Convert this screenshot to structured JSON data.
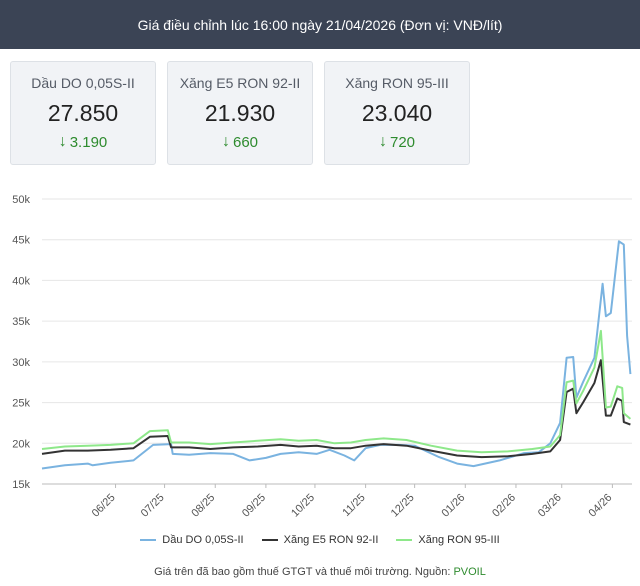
{
  "header": {
    "title": "Giá điều chỉnh lúc 16:00 ngày 21/04/2026 (Đơn vị: VNĐ/lít)"
  },
  "cards": [
    {
      "label": "Dầu DO 0,05S-II",
      "price": "27.850",
      "change": "3.190",
      "direction": "down"
    },
    {
      "label": "Xăng E5 RON 92-II",
      "price": "21.930",
      "change": "660",
      "direction": "down"
    },
    {
      "label": "Xăng RON 95-III",
      "price": "23.040",
      "change": "720",
      "direction": "down"
    }
  ],
  "icons": {
    "change_arrow": "arrow-down-icon"
  },
  "colors": {
    "header_bg": "#3b4455",
    "change": "#2e8b2e",
    "do": "#7ab3e0",
    "e5": "#333333",
    "ron95": "#8ee88a"
  },
  "chart_data": {
    "type": "line",
    "title": "",
    "xlabel": "",
    "ylabel": "",
    "ylim": [
      15000,
      50000
    ],
    "yticks": [
      15000,
      20000,
      25000,
      30000,
      35000,
      40000,
      45000,
      50000
    ],
    "ytick_labels": [
      "15k",
      "20k",
      "25k",
      "30k",
      "35k",
      "40k",
      "45k",
      "50k"
    ],
    "x_domain": [
      "2025-05-01",
      "2026-04-27"
    ],
    "xticks": [
      "2025-06-15",
      "2025-07-15",
      "2025-08-15",
      "2025-09-15",
      "2025-10-15",
      "2025-11-15",
      "2025-12-15",
      "2026-01-15",
      "2026-02-15",
      "2026-03-15",
      "2026-04-15"
    ],
    "xtick_labels": [
      "06/25",
      "07/25",
      "08/25",
      "09/25",
      "10/25",
      "11/25",
      "12/25",
      "01/26",
      "02/26",
      "03/26",
      "04/26"
    ],
    "grid": "horizontal",
    "legend_position": "bottom",
    "series": [
      {
        "name": "Dầu DO 0,05S-II",
        "points": [
          [
            "2025-05-01",
            16900
          ],
          [
            "2025-05-15",
            17300
          ],
          [
            "2025-05-29",
            17500
          ],
          [
            "2025-06-01",
            17300
          ],
          [
            "2025-06-12",
            17600
          ],
          [
            "2025-06-26",
            17900
          ],
          [
            "2025-07-08",
            19800
          ],
          [
            "2025-07-19",
            19900
          ],
          [
            "2025-07-20",
            18700
          ],
          [
            "2025-07-30",
            18600
          ],
          [
            "2025-08-12",
            18800
          ],
          [
            "2025-08-26",
            18700
          ],
          [
            "2025-09-05",
            17900
          ],
          [
            "2025-09-15",
            18200
          ],
          [
            "2025-09-24",
            18700
          ],
          [
            "2025-10-05",
            18900
          ],
          [
            "2025-10-16",
            18700
          ],
          [
            "2025-10-24",
            19200
          ],
          [
            "2025-11-02",
            18500
          ],
          [
            "2025-11-08",
            17900
          ],
          [
            "2025-11-15",
            19400
          ],
          [
            "2025-11-24",
            19800
          ],
          [
            "2025-12-05",
            19800
          ],
          [
            "2025-12-15",
            19700
          ],
          [
            "2025-12-30",
            18300
          ],
          [
            "2026-01-10",
            17500
          ],
          [
            "2026-01-20",
            17200
          ],
          [
            "2026-02-05",
            17900
          ],
          [
            "2026-02-20",
            18800
          ],
          [
            "2026-03-01",
            18900
          ],
          [
            "2026-03-08",
            20000
          ],
          [
            "2026-03-14",
            22500
          ],
          [
            "2026-03-18",
            30500
          ],
          [
            "2026-03-22",
            30600
          ],
          [
            "2026-03-24",
            25600
          ],
          [
            "2026-03-28",
            27500
          ],
          [
            "2026-04-04",
            30500
          ],
          [
            "2026-04-09",
            39600
          ],
          [
            "2026-04-11",
            35600
          ],
          [
            "2026-04-14",
            36000
          ],
          [
            "2026-04-19",
            44800
          ],
          [
            "2026-04-22",
            44400
          ],
          [
            "2026-04-24",
            33200
          ],
          [
            "2026-04-26",
            28500
          ]
        ]
      },
      {
        "name": "Xăng E5 RON 92-II",
        "points": [
          [
            "2025-05-01",
            18700
          ],
          [
            "2025-05-15",
            19100
          ],
          [
            "2025-05-29",
            19100
          ],
          [
            "2025-06-12",
            19200
          ],
          [
            "2025-06-26",
            19400
          ],
          [
            "2025-07-06",
            20800
          ],
          [
            "2025-07-17",
            20900
          ],
          [
            "2025-07-19",
            19500
          ],
          [
            "2025-07-30",
            19500
          ],
          [
            "2025-08-12",
            19300
          ],
          [
            "2025-08-26",
            19500
          ],
          [
            "2025-09-10",
            19600
          ],
          [
            "2025-09-24",
            19800
          ],
          [
            "2025-10-05",
            19600
          ],
          [
            "2025-10-16",
            19700
          ],
          [
            "2025-10-27",
            19400
          ],
          [
            "2025-11-06",
            19400
          ],
          [
            "2025-11-15",
            19700
          ],
          [
            "2025-11-26",
            19900
          ],
          [
            "2025-12-10",
            19700
          ],
          [
            "2025-12-25",
            19100
          ],
          [
            "2026-01-10",
            18500
          ],
          [
            "2026-01-25",
            18300
          ],
          [
            "2026-02-10",
            18400
          ],
          [
            "2026-02-25",
            18700
          ],
          [
            "2026-03-08",
            19000
          ],
          [
            "2026-03-14",
            20400
          ],
          [
            "2026-03-18",
            26300
          ],
          [
            "2026-03-22",
            26700
          ],
          [
            "2026-03-24",
            23700
          ],
          [
            "2026-03-28",
            25000
          ],
          [
            "2026-04-04",
            27400
          ],
          [
            "2026-04-08",
            30200
          ],
          [
            "2026-04-11",
            23400
          ],
          [
            "2026-04-14",
            23400
          ],
          [
            "2026-04-18",
            25500
          ],
          [
            "2026-04-21",
            25200
          ],
          [
            "2026-04-22",
            22600
          ],
          [
            "2026-04-26",
            22300
          ]
        ]
      },
      {
        "name": "Xăng RON 95-III",
        "points": [
          [
            "2025-05-01",
            19300
          ],
          [
            "2025-05-15",
            19600
          ],
          [
            "2025-05-29",
            19700
          ],
          [
            "2025-06-12",
            19800
          ],
          [
            "2025-06-26",
            20000
          ],
          [
            "2025-07-06",
            21500
          ],
          [
            "2025-07-17",
            21600
          ],
          [
            "2025-07-19",
            20100
          ],
          [
            "2025-07-30",
            20100
          ],
          [
            "2025-08-12",
            19900
          ],
          [
            "2025-08-26",
            20100
          ],
          [
            "2025-09-10",
            20300
          ],
          [
            "2025-09-24",
            20500
          ],
          [
            "2025-10-05",
            20300
          ],
          [
            "2025-10-16",
            20400
          ],
          [
            "2025-10-27",
            20000
          ],
          [
            "2025-11-06",
            20100
          ],
          [
            "2025-11-15",
            20400
          ],
          [
            "2025-11-26",
            20600
          ],
          [
            "2025-12-10",
            20400
          ],
          [
            "2025-12-25",
            19700
          ],
          [
            "2026-01-10",
            19100
          ],
          [
            "2026-01-25",
            18900
          ],
          [
            "2026-02-10",
            19000
          ],
          [
            "2026-02-25",
            19300
          ],
          [
            "2026-03-08",
            19600
          ],
          [
            "2026-03-14",
            21000
          ],
          [
            "2026-03-18",
            27500
          ],
          [
            "2026-03-22",
            27700
          ],
          [
            "2026-03-24",
            24900
          ],
          [
            "2026-03-28",
            26400
          ],
          [
            "2026-04-04",
            29300
          ],
          [
            "2026-04-08",
            33800
          ],
          [
            "2026-04-11",
            24400
          ],
          [
            "2026-04-14",
            24500
          ],
          [
            "2026-04-18",
            27000
          ],
          [
            "2026-04-21",
            26800
          ],
          [
            "2026-04-22",
            23700
          ],
          [
            "2026-04-26",
            23000
          ]
        ]
      }
    ]
  },
  "legend": [
    {
      "label": "Dầu DO 0,05S-II",
      "color": "#7ab3e0"
    },
    {
      "label": "Xăng E5 RON 92-II",
      "color": "#333333"
    },
    {
      "label": "Xăng RON 95-III",
      "color": "#8ee88a"
    }
  ],
  "footer": {
    "note": "Giá trên đã bao gồm thuế GTGT và thuế môi trường. Nguồn: ",
    "source": "PVOIL"
  }
}
